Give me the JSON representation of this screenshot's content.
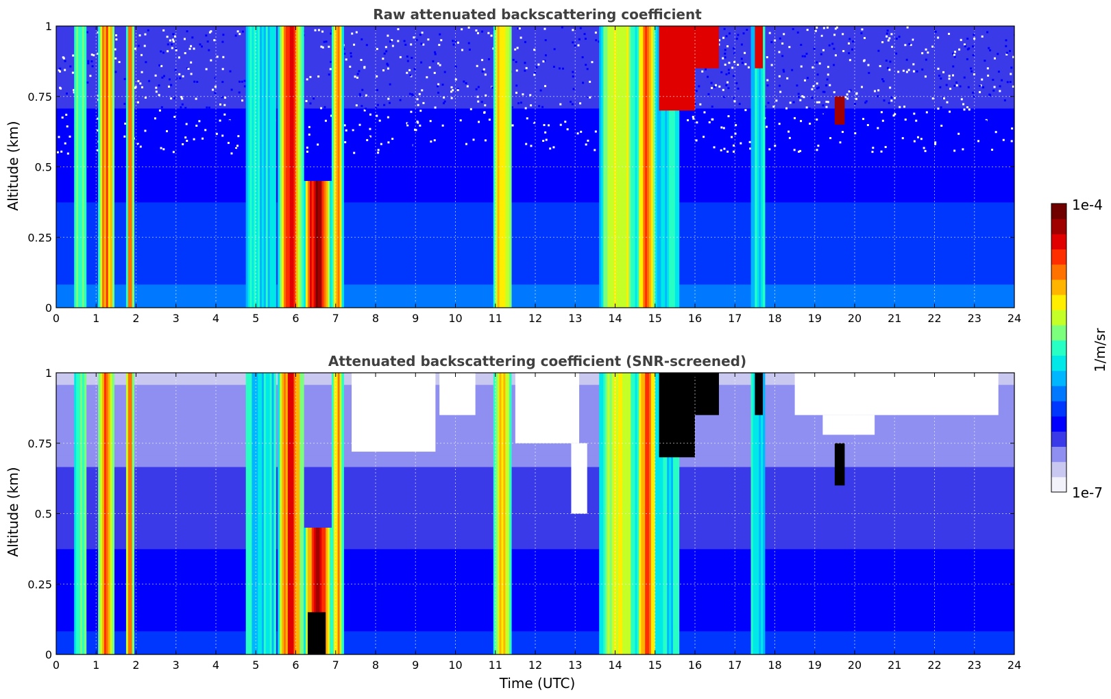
{
  "chart_data": [
    {
      "type": "heatmap",
      "title": "Raw attenuated backscattering coefficient",
      "xlabel": "",
      "ylabel": "Altitude (km)",
      "xlim": [
        0,
        24
      ],
      "ylim": [
        0,
        1
      ],
      "xticks": [
        "0",
        "1",
        "2",
        "3",
        "4",
        "5",
        "6",
        "7",
        "8",
        "9",
        "10",
        "11",
        "12",
        "13",
        "14",
        "15",
        "16",
        "17",
        "18",
        "19",
        "20",
        "21",
        "22",
        "23",
        "24"
      ],
      "yticks": [
        "0",
        "0.25",
        "0.5",
        "0.75",
        "1"
      ],
      "grid": true,
      "bands": [
        {
          "x0": 0.45,
          "x1": 0.75,
          "top": 1.0,
          "intensity": 0.55
        },
        {
          "x0": 1.05,
          "x1": 1.45,
          "top": 1.0,
          "intensity": 0.8
        },
        {
          "x0": 1.75,
          "x1": 1.95,
          "top": 1.0,
          "intensity": 0.8
        },
        {
          "x0": 4.75,
          "x1": 5.5,
          "top": 1.0,
          "intensity": 0.45
        },
        {
          "x0": 5.55,
          "x1": 6.2,
          "top": 1.0,
          "intensity": 0.85
        },
        {
          "x0": 6.2,
          "x1": 6.9,
          "top": 0.45,
          "intensity": 0.95
        },
        {
          "x0": 6.9,
          "x1": 7.2,
          "top": 1.0,
          "intensity": 0.75
        },
        {
          "x0": 10.95,
          "x1": 11.4,
          "top": 1.0,
          "intensity": 0.7
        },
        {
          "x0": 13.6,
          "x1": 14.55,
          "top": 1.0,
          "intensity": 0.65
        },
        {
          "x0": 14.55,
          "x1": 15.05,
          "top": 1.0,
          "intensity": 0.8
        },
        {
          "x0": 15.0,
          "x1": 15.6,
          "top": 1.0,
          "intensity": 0.45
        },
        {
          "x0": 17.4,
          "x1": 17.75,
          "top": 1.0,
          "intensity": 0.45
        }
      ],
      "cloud_patches": [
        {
          "x0": 15.1,
          "x1": 16.0,
          "y0": 0.7,
          "y1": 1.0,
          "intensity": 0.9
        },
        {
          "x0": 16.0,
          "x1": 16.6,
          "y0": 0.85,
          "y1": 1.0,
          "intensity": 0.9
        },
        {
          "x0": 17.5,
          "x1": 17.7,
          "y0": 0.85,
          "y1": 1.0,
          "intensity": 0.9
        },
        {
          "x0": 19.5,
          "x1": 19.75,
          "y0": 0.65,
          "y1": 0.75,
          "intensity": 0.95
        }
      ],
      "background_level": 0.18
    },
    {
      "type": "heatmap",
      "title": "Attenuated backscattering coefficient (SNR-screened)",
      "xlabel": "Time (UTC)",
      "ylabel": "Altitude (km)",
      "xlim": [
        0,
        24
      ],
      "ylim": [
        0,
        1
      ],
      "xticks": [
        "0",
        "1",
        "2",
        "3",
        "4",
        "5",
        "6",
        "7",
        "8",
        "9",
        "10",
        "11",
        "12",
        "13",
        "14",
        "15",
        "16",
        "17",
        "18",
        "19",
        "20",
        "21",
        "22",
        "23",
        "24"
      ],
      "yticks": [
        "0",
        "0.25",
        "0.5",
        "0.75",
        "1"
      ],
      "grid": true,
      "bands": [
        {
          "x0": 0.45,
          "x1": 0.75,
          "top": 1.0,
          "intensity": 0.55
        },
        {
          "x0": 1.05,
          "x1": 1.45,
          "top": 1.0,
          "intensity": 0.8
        },
        {
          "x0": 1.75,
          "x1": 1.95,
          "top": 1.0,
          "intensity": 0.8
        },
        {
          "x0": 4.75,
          "x1": 5.5,
          "top": 1.0,
          "intensity": 0.45
        },
        {
          "x0": 5.55,
          "x1": 6.2,
          "top": 1.0,
          "intensity": 0.85
        },
        {
          "x0": 6.2,
          "x1": 6.9,
          "top": 0.45,
          "intensity": 0.95
        },
        {
          "x0": 6.9,
          "x1": 7.2,
          "top": 1.0,
          "intensity": 0.75
        },
        {
          "x0": 10.95,
          "x1": 11.4,
          "top": 1.0,
          "intensity": 0.7
        },
        {
          "x0": 13.6,
          "x1": 14.55,
          "top": 1.0,
          "intensity": 0.65
        },
        {
          "x0": 14.55,
          "x1": 15.05,
          "top": 1.0,
          "intensity": 0.8
        },
        {
          "x0": 15.0,
          "x1": 15.6,
          "top": 1.0,
          "intensity": 0.45
        },
        {
          "x0": 17.4,
          "x1": 17.75,
          "top": 1.0,
          "intensity": 0.45
        }
      ],
      "cloud_patches": [
        {
          "x0": 15.1,
          "x1": 16.0,
          "y0": 0.7,
          "y1": 1.0,
          "intensity": 1.0
        },
        {
          "x0": 16.0,
          "x1": 16.6,
          "y0": 0.85,
          "y1": 1.0,
          "intensity": 1.0
        },
        {
          "x0": 17.5,
          "x1": 17.7,
          "y0": 0.85,
          "y1": 1.0,
          "intensity": 1.0
        },
        {
          "x0": 19.5,
          "x1": 19.75,
          "y0": 0.6,
          "y1": 0.75,
          "intensity": 1.0
        },
        {
          "x0": 6.3,
          "x1": 6.75,
          "y0": 0.0,
          "y1": 0.15,
          "intensity": 1.0
        }
      ],
      "screened_regions": [
        {
          "x0": 7.4,
          "x1": 9.5,
          "y0": 0.72,
          "y1": 1.0
        },
        {
          "x0": 9.6,
          "x1": 10.5,
          "y0": 0.85,
          "y1": 1.0
        },
        {
          "x0": 11.5,
          "x1": 13.1,
          "y0": 0.75,
          "y1": 1.0
        },
        {
          "x0": 12.9,
          "x1": 13.3,
          "y0": 0.5,
          "y1": 0.75
        },
        {
          "x0": 18.5,
          "x1": 23.6,
          "y0": 0.85,
          "y1": 1.0
        },
        {
          "x0": 19.2,
          "x1": 20.5,
          "y0": 0.78,
          "y1": 0.85
        }
      ],
      "background_level": 0.12
    }
  ],
  "colorbar": {
    "label": "1/m/sr",
    "max_label": "1e-4",
    "min_label": "1e-7",
    "colors": [
      "#f2f2fb",
      "#c8c8f0",
      "#8f8ff2",
      "#3a3ae8",
      "#0000ff",
      "#0037ff",
      "#0078ff",
      "#00b6ff",
      "#00e8e8",
      "#28ffc4",
      "#7cff7c",
      "#c4ff28",
      "#ffee00",
      "#ffb400",
      "#ff7200",
      "#ff2e00",
      "#e00000",
      "#a00000",
      "#700000"
    ]
  }
}
